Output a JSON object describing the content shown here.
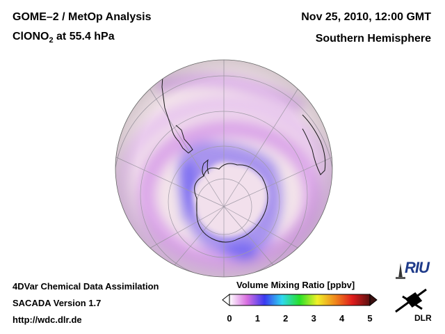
{
  "header": {
    "title": "GOME–2 / MetOp Analysis",
    "species_prefix": "ClONO",
    "species_sub": "2",
    "species_suffix": " at 55.4 hPa",
    "date": "Nov 25, 2010, 12:00 GMT",
    "region": "Southern Hemisphere"
  },
  "footer": {
    "line1": "4DVar Chemical Data Assimilation",
    "line2": "SACADA Version 1.7",
    "line3": "http://wdc.dlr.de"
  },
  "colorbar": {
    "title": "Volume Mixing Ratio [ppbv]",
    "ticks": [
      "0",
      "1",
      "2",
      "3",
      "4",
      "5"
    ],
    "min": 0,
    "max": 5,
    "colors": [
      "#ffffff",
      "#d86ee0",
      "#3a3af0",
      "#2fd8f0",
      "#28e028",
      "#f0f028",
      "#f08a1c",
      "#e01c1c",
      "#5a1010"
    ]
  },
  "map": {
    "projection": "orthographic",
    "hemisphere": "south",
    "background_color": "#f3e4ea",
    "low_color": "#8070f0",
    "mid_color": "#d8a0e8",
    "low_ring_value_ppbv": 0.5,
    "mid_ring_value_ppbv": 0.2
  },
  "logos": {
    "riu": "RIU",
    "dlr": "DLR"
  }
}
